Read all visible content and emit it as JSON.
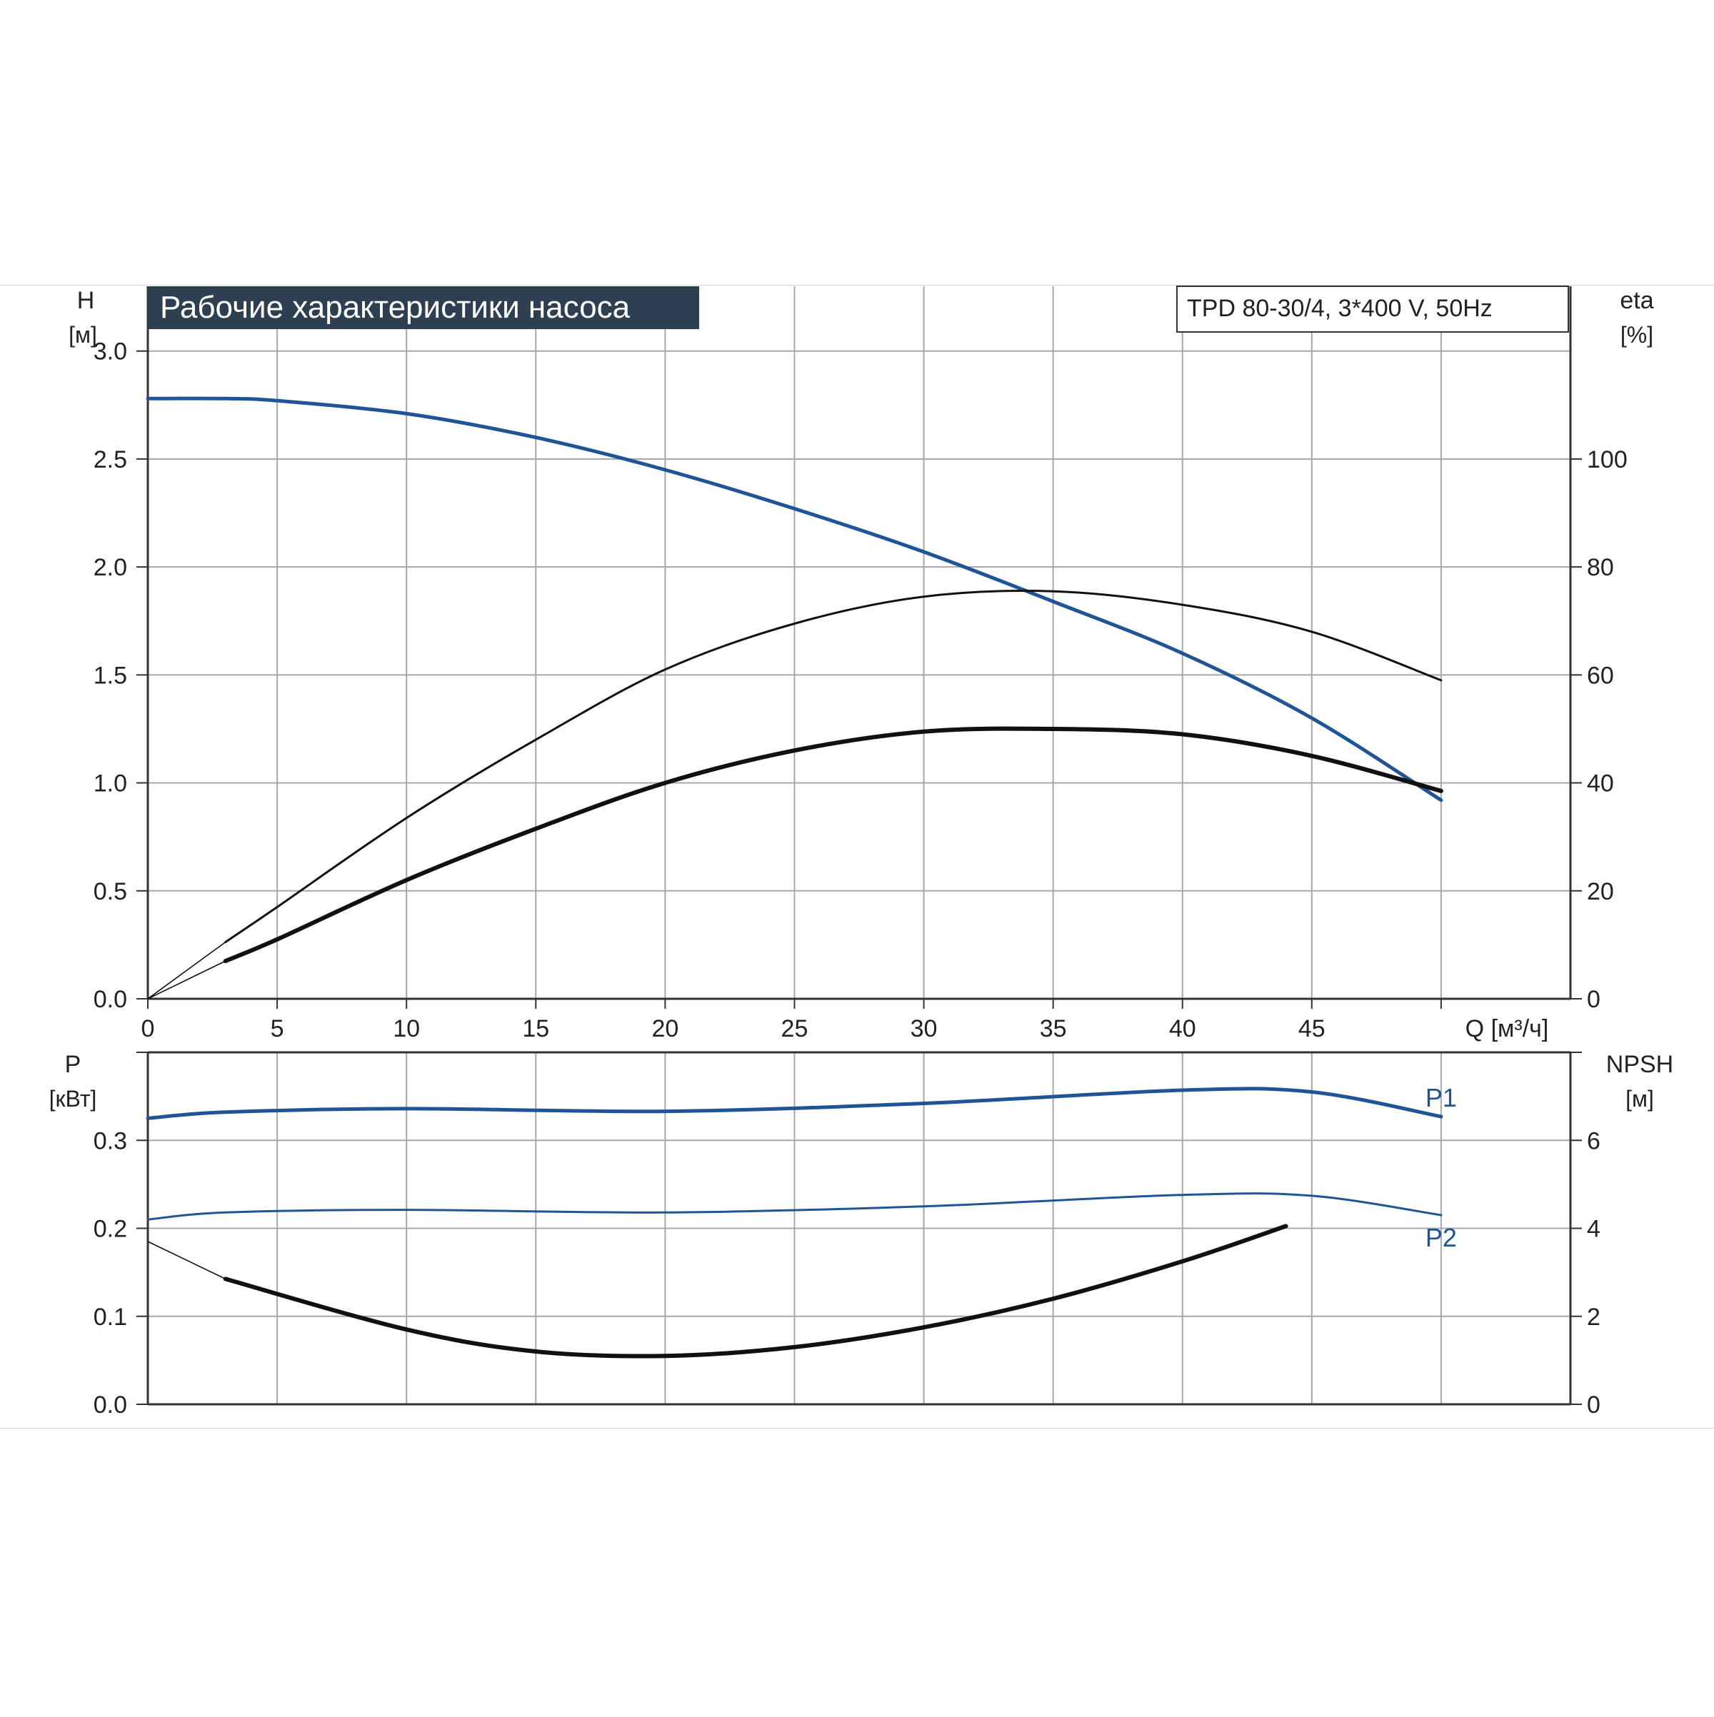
{
  "chart_data": [
    {
      "type": "line",
      "title": "Рабочие характеристики насоса",
      "model_label": "TPD 80-30/4, 3*400 V, 50Hz",
      "xlabel": "Q [м³/ч]",
      "xlim": [
        0,
        55
      ],
      "x_ticks": [
        "0",
        "5",
        "10",
        "15",
        "20",
        "25",
        "30",
        "35",
        "40",
        "45"
      ],
      "y_left": {
        "label_top": "H",
        "label_unit": "[м]",
        "ylim": [
          0,
          3.3
        ],
        "ticks": [
          "0.0",
          "0.5",
          "1.0",
          "1.5",
          "2.0",
          "2.5",
          "3.0"
        ]
      },
      "y_right": {
        "label_top": "eta",
        "label_unit": "[%]",
        "ylim": [
          0,
          132
        ],
        "ticks": [
          "0",
          "20",
          "40",
          "60",
          "80",
          "100"
        ]
      },
      "grid": true,
      "series": [
        {
          "id": "H",
          "axis": "left",
          "color": "#1f5596",
          "x": [
            0,
            3,
            5,
            10,
            15,
            20,
            25,
            30,
            35,
            40,
            45,
            50
          ],
          "y": [
            2.78,
            2.78,
            2.77,
            2.71,
            2.6,
            2.45,
            2.27,
            2.07,
            1.84,
            1.6,
            1.3,
            0.92
          ]
        },
        {
          "id": "eta-thin",
          "axis": "right",
          "color": "#111111",
          "x": [
            0,
            3,
            5,
            10,
            15,
            20,
            25,
            30,
            35,
            40,
            45,
            50
          ],
          "y": [
            0,
            10.5,
            17,
            33.5,
            48,
            61,
            69.5,
            74.5,
            75.5,
            73,
            68,
            59
          ]
        },
        {
          "id": "eta-thick",
          "axis": "right",
          "color": "#111111",
          "x": [
            0,
            3,
            5,
            10,
            15,
            20,
            25,
            30,
            35,
            40,
            45,
            50
          ],
          "y": [
            0,
            7,
            11,
            22,
            31.5,
            40,
            46,
            49.5,
            50,
            49,
            45,
            38.5
          ]
        }
      ]
    },
    {
      "type": "line",
      "xlim": [
        0,
        55
      ],
      "y_left": {
        "label_top": "P",
        "label_unit": "[кВт]",
        "ylim": [
          0,
          0.4
        ],
        "ticks": [
          "0.0",
          "0.1",
          "0.2",
          "0.3"
        ]
      },
      "y_right": {
        "label_top": "NPSH",
        "label_unit": "[м]",
        "ylim": [
          0,
          8
        ],
        "ticks": [
          "0",
          "2",
          "4",
          "6"
        ]
      },
      "grid": true,
      "series": [
        {
          "id": "P1",
          "name": "P1",
          "axis": "left",
          "color": "#1f5596",
          "x": [
            0,
            3,
            10,
            20,
            30,
            40,
            45,
            50
          ],
          "y": [
            0.325,
            0.332,
            0.336,
            0.333,
            0.342,
            0.357,
            0.355,
            0.327
          ]
        },
        {
          "id": "P2",
          "name": "P2",
          "axis": "left",
          "color": "#1f5596",
          "x": [
            0,
            3,
            10,
            20,
            30,
            40,
            45,
            50
          ],
          "y": [
            0.21,
            0.218,
            0.221,
            0.218,
            0.225,
            0.238,
            0.237,
            0.215
          ]
        },
        {
          "id": "NPSH",
          "axis": "right",
          "color": "#111111",
          "x": [
            0,
            3,
            10,
            15,
            20,
            25,
            30,
            35,
            40,
            44
          ],
          "y": [
            3.7,
            2.85,
            1.7,
            1.2,
            1.1,
            1.3,
            1.75,
            2.4,
            3.25,
            4.05
          ]
        }
      ]
    }
  ]
}
